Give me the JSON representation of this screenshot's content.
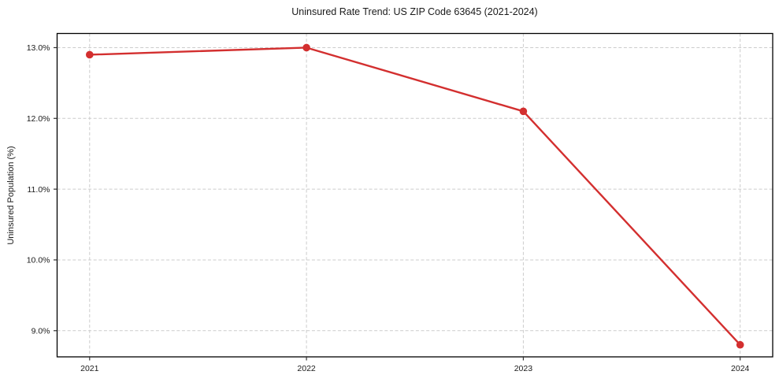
{
  "figure": {
    "background": "#ffffff"
  },
  "chart_data": {
    "type": "line",
    "title": "Uninsured Rate Trend: US ZIP Code 63645 (2021-2024)",
    "xlabel": "",
    "ylabel": "Uninsured Population (%)",
    "x": [
      2021,
      2022,
      2023,
      2024
    ],
    "x_tick_labels": [
      "2021",
      "2022",
      "2023",
      "2024"
    ],
    "series": [
      {
        "name": "Uninsured rate",
        "values": [
          12.9,
          13.0,
          12.1,
          8.8
        ]
      }
    ],
    "y_ticks": [
      9.0,
      10.0,
      11.0,
      12.0,
      13.0
    ],
    "y_tick_labels": [
      "9.0%",
      "10.0%",
      "11.0%",
      "12.0%",
      "13.0%"
    ],
    "xlim": [
      2020.85,
      2024.15
    ],
    "ylim": [
      8.63,
      13.2
    ],
    "grid": true,
    "grid_style": "dashed",
    "legend": "none",
    "line_color": "#d32f2f",
    "marker": "circle",
    "marker_size": 4.8,
    "line_width": 2.4,
    "grid_color": "#cccccc",
    "spine_color": "#000000",
    "tick_color": "#333333",
    "text_color": "#1a1a1a"
  }
}
